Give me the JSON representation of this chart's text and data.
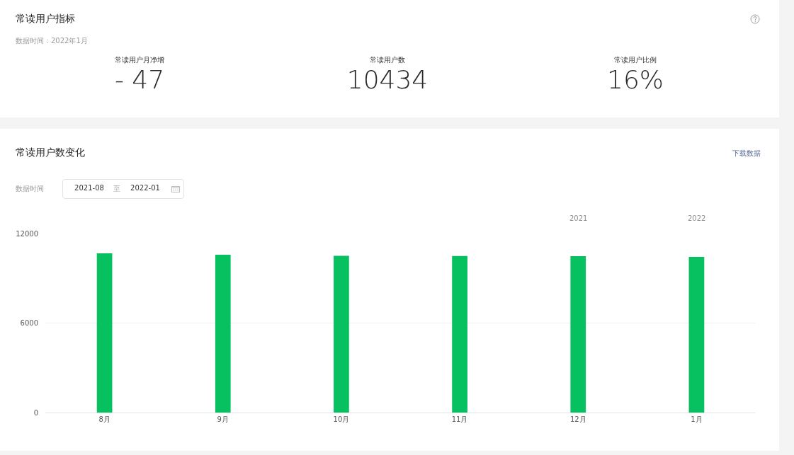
{
  "chart_data": [
    {
      "type": "other",
      "title": "常读用户指标",
      "subtitle": "数据时间：2022年1月",
      "annotations": [
        "常读用户月净增",
        "- 47",
        "常读用户数",
        "10434",
        "常读用户比例",
        "16%"
      ]
    },
    {
      "type": "bar",
      "title": "常读用户数变化",
      "categories": [
        "8月",
        "9月",
        "10月",
        "11月",
        "12月",
        "1月"
      ],
      "values": [
        10670,
        10580,
        10510,
        10490,
        10480,
        10430
      ],
      "color": "#07c160",
      "ylim": [
        0,
        12000
      ],
      "yticks": [
        0,
        6000,
        12000
      ],
      "grid": "y",
      "annotations": [
        "下载数据",
        "数据时间",
        "2021-08",
        "至",
        "2022-01",
        "2021",
        "2022"
      ]
    }
  ]
}
